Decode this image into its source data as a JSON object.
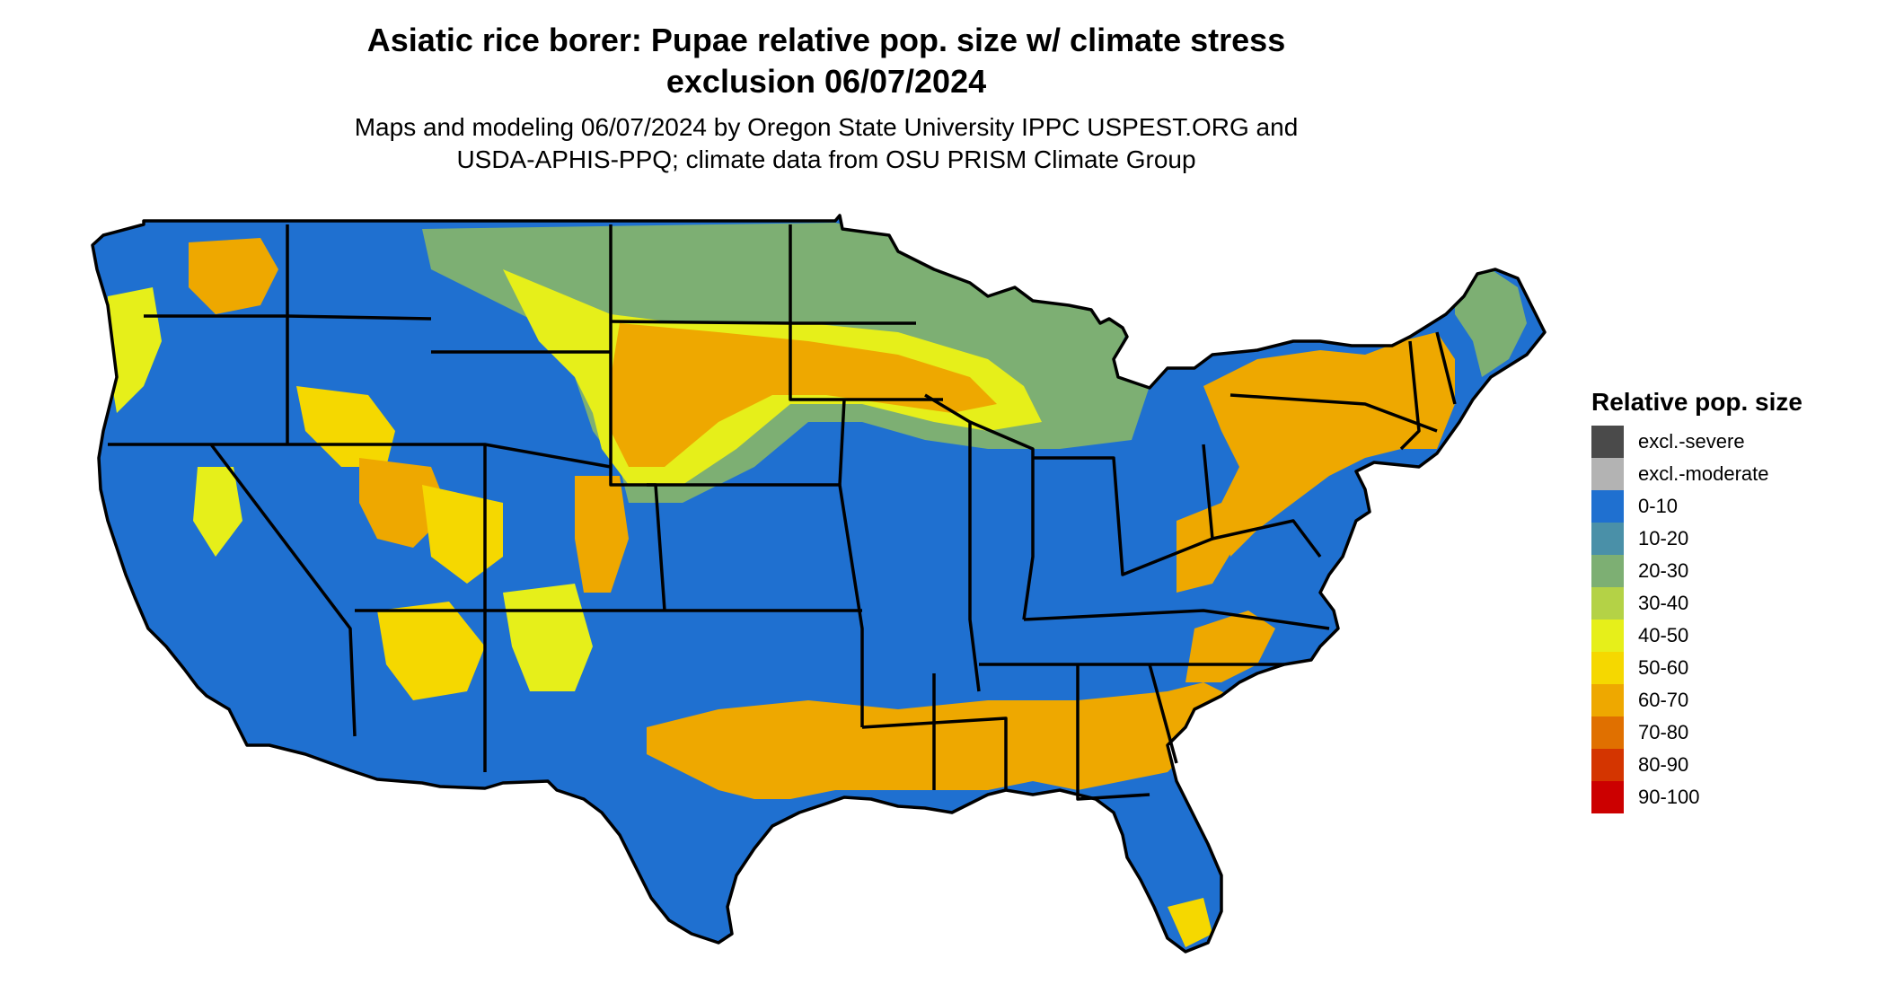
{
  "title_line1": "Asiatic rice borer: Pupae relative pop. size w/ climate stress",
  "title_line2": "exclusion 06/07/2024",
  "subtitle_line1": "Maps and modeling 06/07/2024 by Oregon State University IPPC USPEST.ORG and",
  "subtitle_line2": "USDA-APHIS-PPQ; climate data from OSU PRISM Climate Group",
  "legend": {
    "title": "Relative pop. size",
    "items": [
      {
        "label": "excl.-severe",
        "color": "#4a4a4a"
      },
      {
        "label": "excl.-moderate",
        "color": "#b3b3b3"
      },
      {
        "label": "0-10",
        "color": "#1f70d0"
      },
      {
        "label": "10-20",
        "color": "#4a90a8"
      },
      {
        "label": "20-30",
        "color": "#7daf73"
      },
      {
        "label": "30-40",
        "color": "#b4d246"
      },
      {
        "label": "40-50",
        "color": "#e6ef1a"
      },
      {
        "label": "50-60",
        "color": "#f5d800"
      },
      {
        "label": "60-70",
        "color": "#eea800"
      },
      {
        "label": "70-80",
        "color": "#e07000"
      },
      {
        "label": "80-90",
        "color": "#d43500"
      },
      {
        "label": "90-100",
        "color": "#cc0000"
      }
    ]
  },
  "map": {
    "base_color": "#1f70d0",
    "border_color": "#000000"
  }
}
